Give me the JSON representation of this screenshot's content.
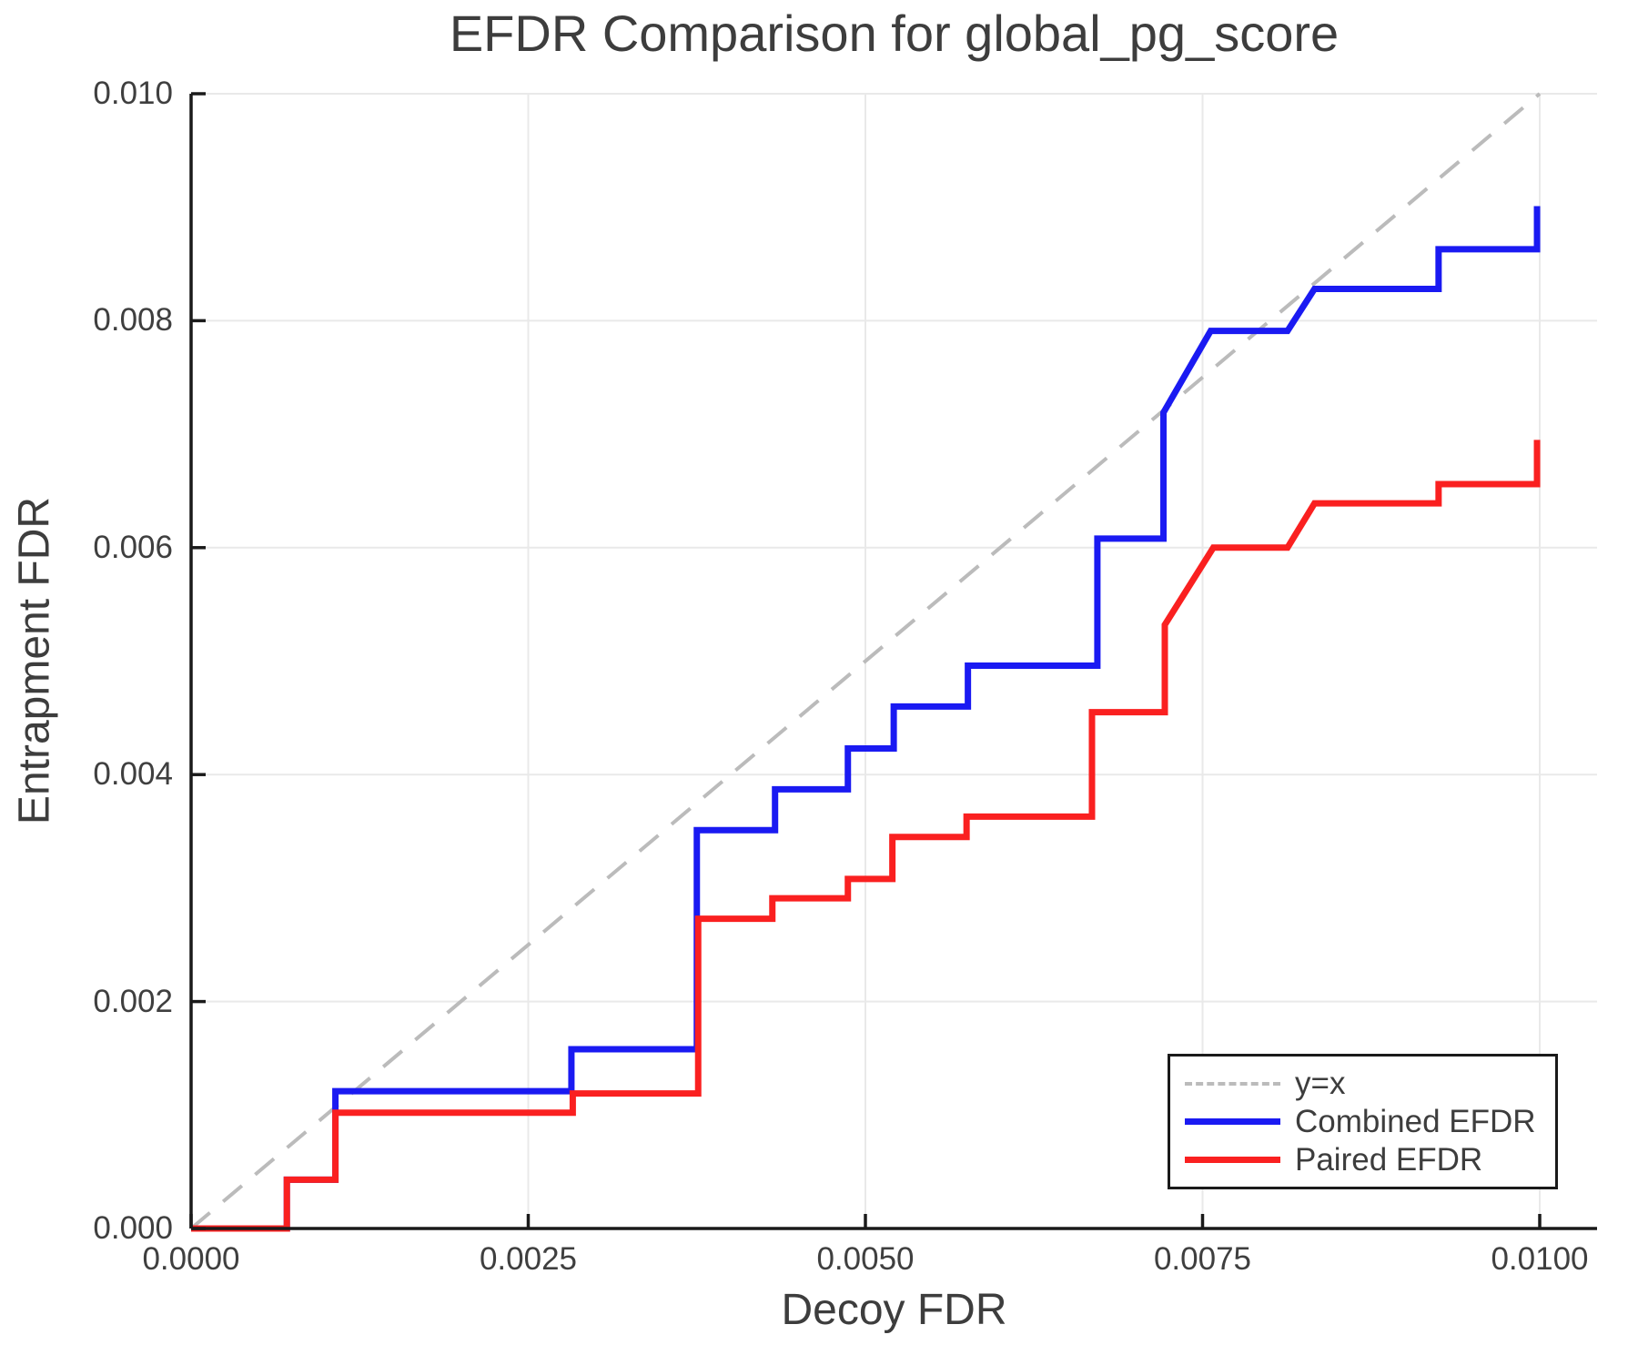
{
  "title": "EFDR Comparison for global_pg_score",
  "x_axis": {
    "label": "Decoy FDR",
    "ticks": [
      {
        "value": 0.0,
        "label": "0.0000"
      },
      {
        "value": 0.0025,
        "label": "0.0025"
      },
      {
        "value": 0.005,
        "label": "0.0050"
      },
      {
        "value": 0.0075,
        "label": "0.0075"
      },
      {
        "value": 0.01,
        "label": "0.0100"
      }
    ]
  },
  "y_axis": {
    "label": "Entrapment FDR",
    "ticks": [
      {
        "value": 0.0,
        "label": "0.000"
      },
      {
        "value": 0.002,
        "label": "0.002"
      },
      {
        "value": 0.004,
        "label": "0.004"
      },
      {
        "value": 0.006,
        "label": "0.006"
      },
      {
        "value": 0.008,
        "label": "0.008"
      },
      {
        "value": 0.01,
        "label": "0.010"
      }
    ]
  },
  "legend": {
    "items": [
      {
        "label": "y=x",
        "color": "#bbbbbb",
        "style": "dashed"
      },
      {
        "label": "Combined EFDR",
        "color": "#1a1af2",
        "style": "solid"
      },
      {
        "label": "Paired EFDR",
        "color": "#fa2020",
        "style": "solid"
      }
    ]
  },
  "colors": {
    "combined": "#1a1af2",
    "paired": "#fa2020",
    "reference": "#bbbbbb",
    "grid": "#e9e9e9",
    "spine": "#1a1a1a",
    "text": "#3d3d3d"
  },
  "chart_data": {
    "type": "line",
    "title": "EFDR Comparison for global_pg_score",
    "xlabel": "Decoy FDR",
    "ylabel": "Entrapment FDR",
    "xlim": [
      0.0,
      0.01
    ],
    "ylim": [
      0.0,
      0.01
    ],
    "grid": true,
    "legend_position": "lower right",
    "reference_line": {
      "name": "y=x",
      "from": [
        0.0,
        0.0
      ],
      "to": [
        0.01,
        0.01
      ],
      "style": "dashed",
      "color": "#bbbbbb"
    },
    "series": [
      {
        "name": "Combined EFDR",
        "color": "#1a1af2",
        "mode": "step-vertices",
        "points": [
          [
            0.0,
            0.0
          ],
          [
            0.00071,
            0.0
          ],
          [
            0.00071,
            0.00043
          ],
          [
            0.00107,
            0.00043
          ],
          [
            0.00107,
            0.00121
          ],
          [
            0.00282,
            0.00121
          ],
          [
            0.00282,
            0.00158
          ],
          [
            0.00375,
            0.00158
          ],
          [
            0.00375,
            0.00351
          ],
          [
            0.00433,
            0.00351
          ],
          [
            0.00433,
            0.00387
          ],
          [
            0.00487,
            0.00387
          ],
          [
            0.00487,
            0.00423
          ],
          [
            0.00521,
            0.00423
          ],
          [
            0.00521,
            0.0046
          ],
          [
            0.00576,
            0.0046
          ],
          [
            0.00576,
            0.00496
          ],
          [
            0.00672,
            0.00496
          ],
          [
            0.00672,
            0.00608
          ],
          [
            0.00721,
            0.00608
          ],
          [
            0.00721,
            0.00719
          ],
          [
            0.00756,
            0.00791
          ],
          [
            0.00813,
            0.00791
          ],
          [
            0.00833,
            0.00828
          ],
          [
            0.00925,
            0.00828
          ],
          [
            0.00925,
            0.00863
          ],
          [
            0.00998,
            0.00863
          ],
          [
            0.00998,
            0.00901
          ]
        ]
      },
      {
        "name": "Paired EFDR",
        "color": "#fa2020",
        "mode": "step-vertices",
        "points": [
          [
            0.0,
            0.0
          ],
          [
            0.00071,
            0.0
          ],
          [
            0.00071,
            0.00043
          ],
          [
            0.00107,
            0.00043
          ],
          [
            0.00107,
            0.00102
          ],
          [
            0.00283,
            0.00102
          ],
          [
            0.00283,
            0.00119
          ],
          [
            0.00376,
            0.00119
          ],
          [
            0.00376,
            0.00273
          ],
          [
            0.00431,
            0.00273
          ],
          [
            0.00431,
            0.00291
          ],
          [
            0.00487,
            0.00291
          ],
          [
            0.00487,
            0.00308
          ],
          [
            0.0052,
            0.00308
          ],
          [
            0.0052,
            0.00345
          ],
          [
            0.00575,
            0.00345
          ],
          [
            0.00575,
            0.00363
          ],
          [
            0.00668,
            0.00363
          ],
          [
            0.00668,
            0.00455
          ],
          [
            0.00722,
            0.00455
          ],
          [
            0.00722,
            0.00532
          ],
          [
            0.00758,
            0.006
          ],
          [
            0.00813,
            0.006
          ],
          [
            0.00833,
            0.00639
          ],
          [
            0.00925,
            0.00639
          ],
          [
            0.00925,
            0.00656
          ],
          [
            0.00998,
            0.00656
          ],
          [
            0.00998,
            0.00695
          ]
        ]
      }
    ]
  }
}
